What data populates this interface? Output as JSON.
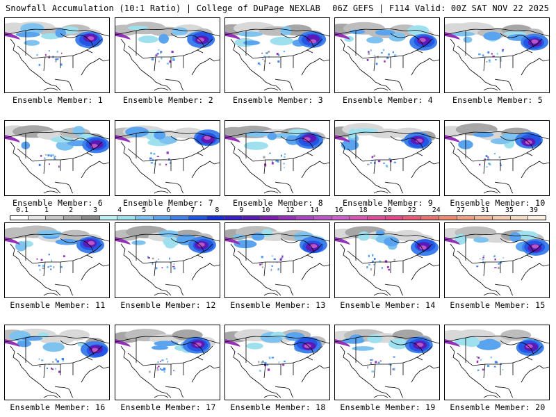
{
  "header": {
    "title": "Snowfall Accumulation (10:1 Ratio) | College of DuPage NEXLAB",
    "run_info": "06Z GEFS | F114 Valid: 00Z SAT NOV 22 2025"
  },
  "members": [
    {
      "label": "Ensemble Member: 1"
    },
    {
      "label": "Ensemble Member: 2"
    },
    {
      "label": "Ensemble Member: 3"
    },
    {
      "label": "Ensemble Member: 4"
    },
    {
      "label": "Ensemble Member: 5"
    },
    {
      "label": "Ensemble Member: 6"
    },
    {
      "label": "Ensemble Member: 7"
    },
    {
      "label": "Ensemble Member: 8"
    },
    {
      "label": "Ensemble Member: 9"
    },
    {
      "label": "Ensemble Member: 10"
    },
    {
      "label": "Ensemble Member: 11"
    },
    {
      "label": "Ensemble Member: 12"
    },
    {
      "label": "Ensemble Member: 13"
    },
    {
      "label": "Ensemble Member: 14"
    },
    {
      "label": "Ensemble Member: 15"
    },
    {
      "label": "Ensemble Member: 16"
    },
    {
      "label": "Ensemble Member: 17"
    },
    {
      "label": "Ensemble Member: 18"
    },
    {
      "label": "Ensemble Member: 19"
    },
    {
      "label": "Ensemble Member: 20"
    }
  ],
  "legend": {
    "ticks": [
      "0.1",
      "1",
      "2",
      "3",
      "4",
      "5",
      "6",
      "7",
      "8",
      "9",
      "10",
      "12",
      "14",
      "16",
      "18",
      "20",
      "22",
      "24",
      "27",
      "31",
      "35",
      "39"
    ],
    "colors": [
      "#ffffff",
      "#e6e6e6",
      "#c8c8c8",
      "#a8a8a8",
      "#8a8a8a",
      "#b9f1f5",
      "#9fe0ee",
      "#7ec2f0",
      "#5aa3ee",
      "#3f80ea",
      "#2456e6",
      "#1430d8",
      "#3a1fc8",
      "#5b1ab8",
      "#7a1fb0",
      "#9431b8",
      "#a845c0",
      "#bb55c8",
      "#cc5fc8",
      "#d855b5",
      "#e04c9c",
      "#e8468a",
      "#e85a78",
      "#e8726c",
      "#ec8a70",
      "#efa080",
      "#f1b696",
      "#f4c8aa",
      "#f7dac2",
      "#fbeede"
    ]
  }
}
